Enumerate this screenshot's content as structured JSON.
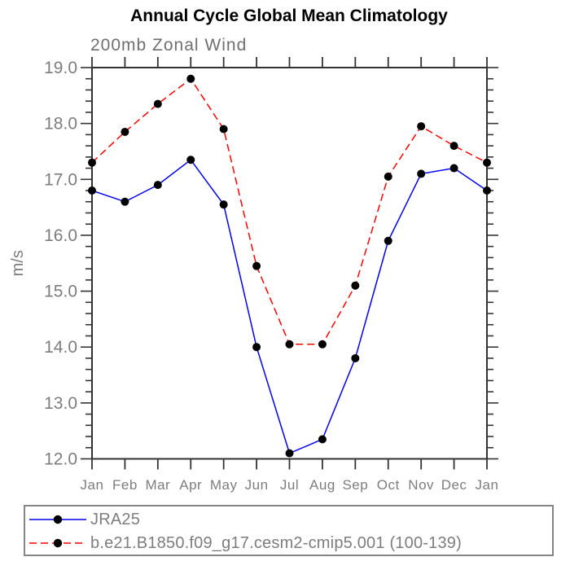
{
  "chart_data": {
    "type": "line",
    "title": "Annual Cycle Global Mean Climatology",
    "subtitle": "200mb Zonal Wind",
    "ylabel": "m/s",
    "categories": [
      "Jan",
      "Feb",
      "Mar",
      "Apr",
      "May",
      "Jun",
      "Jul",
      "Aug",
      "Sep",
      "Oct",
      "Nov",
      "Dec",
      "Jan"
    ],
    "ylim": [
      12.0,
      19.0
    ],
    "ytick_step": 1.0,
    "minor_tick_step": 0.2,
    "ytick_labels": [
      "19.0",
      "18.0",
      "17.0",
      "16.0",
      "15.0",
      "14.0",
      "13.0",
      "12.0"
    ],
    "grid": false,
    "legend_position": "bottom-left-box",
    "series": [
      {
        "name": "JRA25",
        "color": "#0000ee",
        "line_style": "solid",
        "marker": "filled-circle",
        "marker_color": "#000000",
        "values": [
          16.8,
          16.6,
          16.9,
          17.35,
          16.55,
          14.0,
          12.1,
          12.35,
          13.8,
          15.9,
          17.1,
          17.2,
          16.8
        ]
      },
      {
        "name": "b.e21.B1850.f09_g17.cesm2-cmip5.001 (100-139)",
        "color": "#ff0000",
        "line_style": "dashed",
        "marker": "filled-circle",
        "marker_color": "#000000",
        "values": [
          17.3,
          17.85,
          18.35,
          18.8,
          17.9,
          15.45,
          14.05,
          14.05,
          15.1,
          17.05,
          17.95,
          17.6,
          17.3
        ]
      }
    ]
  },
  "colors": {
    "axis": "#333333",
    "tick_label": "#7d7d7d",
    "subtitle": "#6f6f6f",
    "title": "#000000",
    "legend_border": "#858585"
  }
}
